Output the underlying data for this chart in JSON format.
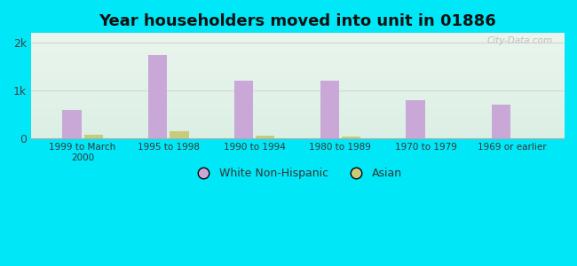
{
  "title": "Year householders moved into unit in 01886",
  "categories": [
    "1999 to March\n2000",
    "1995 to 1998",
    "1990 to 1994",
    "1980 to 1989",
    "1970 to 1979",
    "1969 or earlier"
  ],
  "white_values": [
    600,
    1750,
    1200,
    1200,
    800,
    700
  ],
  "asian_values": [
    75,
    150,
    60,
    45,
    12,
    0
  ],
  "white_color": "#c9a8d8",
  "asian_color": "#c8cc7a",
  "ylim": [
    0,
    2200
  ],
  "yticks": [
    0,
    1000,
    2000
  ],
  "ytick_labels": [
    "0",
    "1k",
    "2k"
  ],
  "bar_width": 0.22,
  "background_outer": "#00e8f8",
  "background_inner_top": "#eaf5ec",
  "background_inner_bottom": "#ceeade",
  "grid_color": "#cccccc",
  "watermark": "City-Data.com",
  "legend_labels": [
    "White Non-Hispanic",
    "Asian"
  ]
}
